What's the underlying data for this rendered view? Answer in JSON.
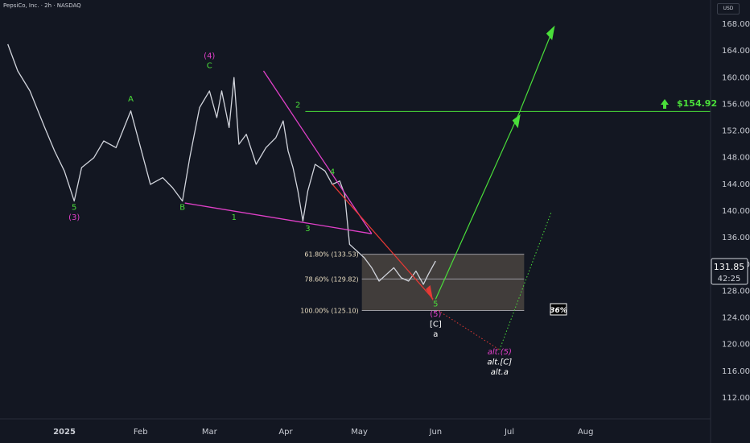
{
  "header": {
    "title": "PepsiCo, Inc. · 2h · NASDAQ",
    "currency": "USD"
  },
  "price_tag": {
    "price": "131.85",
    "countdown": "42:25"
  },
  "target": {
    "label": "$154.92",
    "value": 154.92,
    "color": "#4ade3a"
  },
  "probability_box": "36%",
  "colors": {
    "background": "#131722",
    "candles": "#d1d4dc",
    "green": "#4ade3a",
    "magenta": "#e040c8",
    "red": "#e53935",
    "fib_zone": "#4a443f",
    "fib_line": "#9a9aa0"
  },
  "chart_data": {
    "type": "line",
    "title": "PepsiCo, Inc. · 2h · NASDAQ",
    "xlabel": "",
    "ylabel": "",
    "ylim": [
      110,
      170
    ],
    "y_ticks": [
      112,
      116,
      120,
      124,
      128,
      132,
      136,
      140,
      144,
      148,
      152,
      156,
      160,
      164,
      168
    ],
    "y_tick_labels": [
      "112.00",
      "116.00",
      "120.00",
      "124.00",
      "128.00",
      "132.00",
      "136.00",
      "140.00",
      "144.00",
      "148.00",
      "152.00",
      "156.00",
      "160.00",
      "164.00",
      "168.00"
    ],
    "x_ticks": [
      {
        "label": "2025",
        "day": 0
      },
      {
        "label": "Feb",
        "day": 31
      },
      {
        "label": "Mar",
        "day": 59
      },
      {
        "label": "Apr",
        "day": 90
      },
      {
        "label": "May",
        "day": 120
      },
      {
        "label": "Jun",
        "day": 151
      },
      {
        "label": "Jul",
        "day": 181
      },
      {
        "label": "Aug",
        "day": 212
      }
    ],
    "series": [
      {
        "values": [
          {
            "day": -23,
            "y": 165.0
          },
          {
            "day": -19,
            "y": 161.0
          },
          {
            "day": -14,
            "y": 158.0
          },
          {
            "day": -8,
            "y": 152.5
          },
          {
            "day": -4,
            "y": 149.0
          },
          {
            "day": 0,
            "y": 146.0
          },
          {
            "day": 4,
            "y": 141.5
          },
          {
            "day": 7,
            "y": 146.5
          },
          {
            "day": 12,
            "y": 148.0
          },
          {
            "day": 16,
            "y": 150.5
          },
          {
            "day": 21,
            "y": 149.5
          },
          {
            "day": 27,
            "y": 155.0
          },
          {
            "day": 31,
            "y": 149.5
          },
          {
            "day": 35,
            "y": 144.0
          },
          {
            "day": 40,
            "y": 145.0
          },
          {
            "day": 44,
            "y": 143.5
          },
          {
            "day": 48,
            "y": 141.5
          },
          {
            "day": 51,
            "y": 148.0
          },
          {
            "day": 55,
            "y": 155.5
          },
          {
            "day": 59,
            "y": 158.0
          },
          {
            "day": 62,
            "y": 154.0
          },
          {
            "day": 64,
            "y": 158.0
          },
          {
            "day": 67,
            "y": 152.5
          },
          {
            "day": 69,
            "y": 160.0
          },
          {
            "day": 71,
            "y": 150.0
          },
          {
            "day": 74,
            "y": 151.5
          },
          {
            "day": 78,
            "y": 147.0
          },
          {
            "day": 82,
            "y": 149.5
          },
          {
            "day": 86,
            "y": 151.0
          },
          {
            "day": 89,
            "y": 153.5
          },
          {
            "day": 91,
            "y": 149.0
          },
          {
            "day": 93,
            "y": 146.5
          },
          {
            "day": 95,
            "y": 143.0
          },
          {
            "day": 97,
            "y": 138.5
          },
          {
            "day": 99,
            "y": 143.0
          },
          {
            "day": 102,
            "y": 147.0
          },
          {
            "day": 106,
            "y": 146.0
          },
          {
            "day": 109,
            "y": 144.0
          },
          {
            "day": 112,
            "y": 144.5
          },
          {
            "day": 114,
            "y": 142.5
          },
          {
            "day": 116,
            "y": 135.0
          },
          {
            "day": 119,
            "y": 134.0
          },
          {
            "day": 122,
            "y": 133.0
          },
          {
            "day": 125,
            "y": 131.5
          },
          {
            "day": 128,
            "y": 129.5
          },
          {
            "day": 131,
            "y": 130.5
          },
          {
            "day": 134,
            "y": 131.5
          },
          {
            "day": 137,
            "y": 130.0
          },
          {
            "day": 140,
            "y": 129.5
          },
          {
            "day": 143,
            "y": 131.0
          },
          {
            "day": 146,
            "y": 129.0
          },
          {
            "day": 148,
            "y": 130.5
          },
          {
            "day": 151,
            "y": 132.5
          }
        ]
      }
    ],
    "horizontal_line": {
      "y": 154.92,
      "day_start": 98
    },
    "fib_levels": [
      {
        "label": "61.80% (133.53)",
        "value": 133.53
      },
      {
        "label": "78.60% (129.82)",
        "value": 129.82
      },
      {
        "label": "100.00% (125.10)",
        "value": 125.1
      }
    ],
    "fib_zone_days": [
      121,
      187
    ],
    "wave_labels": [
      {
        "text": "5",
        "day": 4,
        "y": 140.2,
        "color": "green"
      },
      {
        "text": "(3)",
        "day": 4,
        "y": 138.7,
        "color": "magenta"
      },
      {
        "text": "A",
        "day": 27,
        "y": 156.4,
        "color": "green"
      },
      {
        "text": "B",
        "day": 48,
        "y": 140.2,
        "color": "green"
      },
      {
        "text": "C",
        "day": 59,
        "y": 161.4,
        "color": "green"
      },
      {
        "text": "(4)",
        "day": 59,
        "y": 162.9,
        "color": "magenta"
      },
      {
        "text": "1",
        "day": 69,
        "y": 138.7,
        "color": "green"
      },
      {
        "text": "2",
        "day": 95,
        "y": 155.5,
        "color": "green"
      },
      {
        "text": "3",
        "day": 99,
        "y": 137.0,
        "color": "green"
      },
      {
        "text": "4",
        "day": 109,
        "y": 145.5,
        "color": "green"
      },
      {
        "text": "5",
        "day": 151,
        "y": 125.7,
        "color": "green"
      },
      {
        "text": "(5)",
        "day": 151,
        "y": 124.2,
        "color": "magenta"
      },
      {
        "text": "[C]",
        "day": 151,
        "y": 122.7,
        "color": "white"
      },
      {
        "text": "a",
        "day": 151,
        "y": 121.2,
        "color": "white"
      },
      {
        "text": "alt.(5)",
        "day": 177,
        "y": 118.5,
        "color": "magenta"
      },
      {
        "text": "alt.[C]",
        "day": 177,
        "y": 117.0,
        "color": "white"
      },
      {
        "text": "alt.a",
        "day": 177,
        "y": 115.5,
        "color": "white"
      }
    ]
  }
}
